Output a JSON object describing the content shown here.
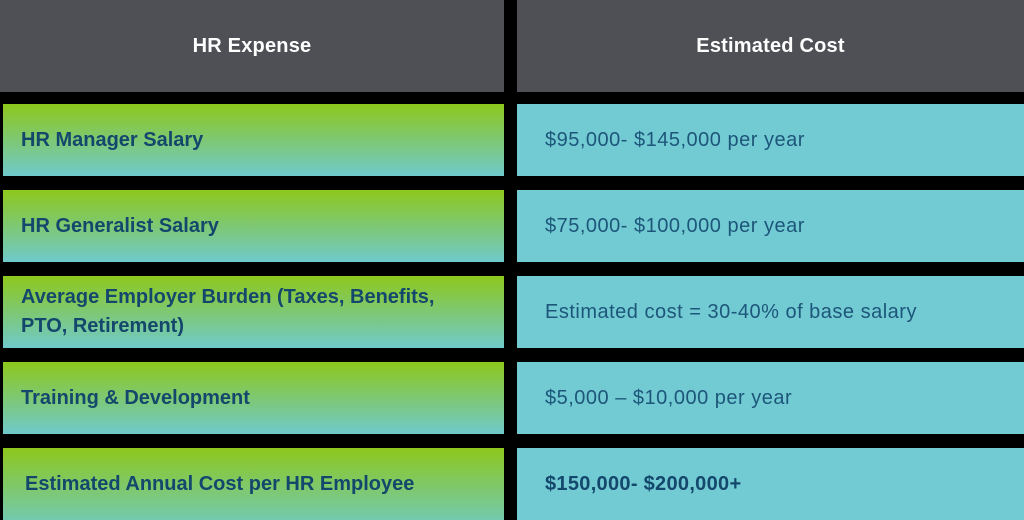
{
  "title": "HR Expense vs Estimated Cost table",
  "colors": {
    "background": "#000000",
    "header_bg": "#4f5055",
    "header_text": "#ffffff",
    "row_gradient_top": "#8dc81c",
    "row_gradient_bottom": "#6fc9cb",
    "cost_cell_bg": "#72cbd3",
    "cell_text_bold": "#14476c",
    "cost_text": "#1d567a"
  },
  "header": {
    "expense_label": "HR Expense",
    "cost_label": "Estimated Cost"
  },
  "rows": [
    {
      "expense": "HR Manager Salary",
      "cost": "$95,000- $145,000 per year"
    },
    {
      "expense": "HR Generalist Salary",
      "cost": "$75,000- $100,000 per year"
    },
    {
      "expense": "Average Employer Burden (Taxes, Benefits, PTO, Retirement)",
      "cost": "Estimated cost = 30-40% of base salary"
    },
    {
      "expense": "Training & Development",
      "cost": "$5,000 – $10,000 per year"
    },
    {
      "expense": "Estimated Annual Cost per HR Employee",
      "cost": "$150,000- $200,000+"
    }
  ],
  "chart_data": {
    "type": "table",
    "title": "Estimated annual HR expenses",
    "columns": [
      "HR Expense",
      "Estimated Cost"
    ],
    "rows": [
      [
        "HR Manager Salary",
        "$95,000- $145,000 per year"
      ],
      [
        "HR Generalist Salary",
        "$75,000- $100,000 per year"
      ],
      [
        "Average Employer Burden (Taxes, Benefits, PTO, Retirement)",
        "Estimated cost = 30-40% of base salary"
      ],
      [
        "Training & Development",
        "$5,000 – $10,000 per year"
      ],
      [
        "Estimated Annual Cost per HR Employee",
        "$150,000- $200,000+"
      ]
    ]
  }
}
